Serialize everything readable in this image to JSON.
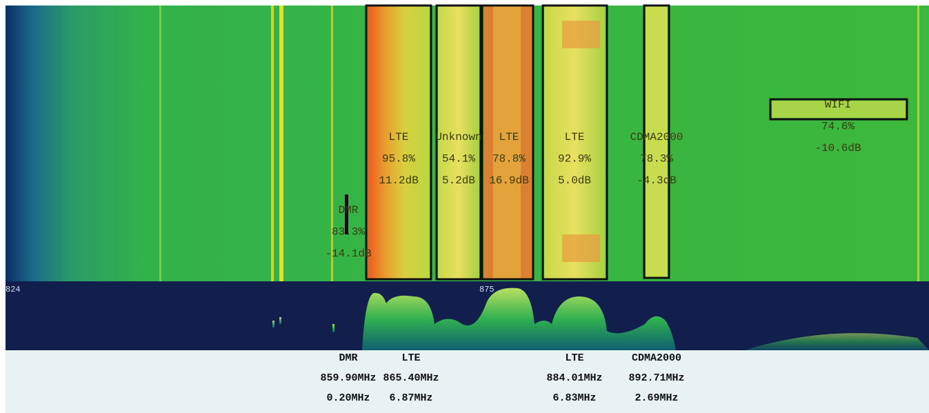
{
  "waterfall": {
    "detections": [
      {
        "label": "DMR",
        "confidence": "83.3%",
        "snr": "-14.1dB"
      },
      {
        "label": "LTE",
        "confidence": "95.8%",
        "snr": "11.2dB"
      },
      {
        "label": "Unknown",
        "confidence": "54.1%",
        "snr": "5.2dB"
      },
      {
        "label": "LTE",
        "confidence": "78.8%",
        "snr": "16.9dB"
      },
      {
        "label": "LTE",
        "confidence": "92.9%",
        "snr": "5.0dB"
      },
      {
        "label": "CDMA2000",
        "confidence": "78.3%",
        "snr": "-4.3dB"
      },
      {
        "label": "WIFI",
        "confidence": "74.6%",
        "snr": "-10.6dB"
      }
    ]
  },
  "axis": {
    "labels": [
      "824",
      "875"
    ]
  },
  "summary": {
    "rows": [
      {
        "label": "DMR",
        "center": "859.90MHz",
        "bandwidth": "0.20MHz"
      },
      {
        "label": "LTE",
        "center": "865.40MHz",
        "bandwidth": "6.87MHz"
      },
      {
        "label": "LTE",
        "center": "884.01MHz",
        "bandwidth": "6.83MHz"
      },
      {
        "label": "CDMA2000",
        "center": "892.71MHz",
        "bandwidth": "2.69MHz"
      }
    ]
  }
}
